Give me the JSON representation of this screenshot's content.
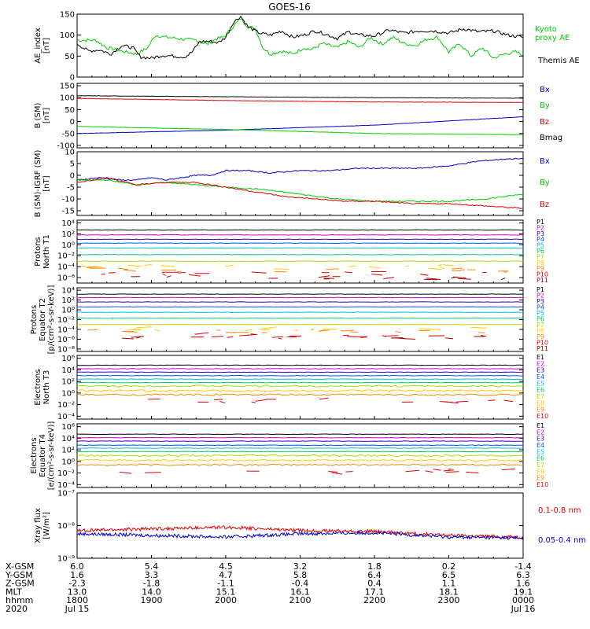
{
  "title": "GOES-16",
  "colors": {
    "black": "#000000",
    "red": "#e00000",
    "green": "#00cc00",
    "blue": "#0000cc",
    "axis": "#000000",
    "bg": "#ffffff"
  },
  "time_axis": {
    "x_range": [
      1800,
      2400
    ],
    "tick_hours": [
      1800,
      1900,
      2000,
      2100,
      2200,
      2300,
      2400
    ]
  },
  "ephemeris": {
    "rows": [
      {
        "label": "X-GSM",
        "values": [
          "6.0",
          "5.4",
          "4.5",
          "3.2",
          "1.8",
          "0.2",
          "-1.4"
        ]
      },
      {
        "label": "Y-GSM",
        "values": [
          "1.6",
          "3.3",
          "4.7",
          "5.8",
          "6.4",
          "6.5",
          "6.3"
        ]
      },
      {
        "label": "Z-GSM",
        "values": [
          "-2.3",
          "-1.8",
          "-1.1",
          "-0.4",
          "0.4",
          "1.1",
          "1.6"
        ]
      },
      {
        "label": "MLT",
        "values": [
          "13.0",
          "14.0",
          "15.1",
          "16.1",
          "17.1",
          "18.1",
          "19.1"
        ]
      },
      {
        "label": "hhmm",
        "values": [
          "1800",
          "1900",
          "2000",
          "2100",
          "2200",
          "2300",
          "0000"
        ]
      },
      {
        "label": "2020",
        "values": [
          "Jul 15",
          "",
          "",
          "",
          "",
          "",
          "Jul 16"
        ]
      }
    ]
  },
  "chart_data": [
    {
      "type": "line",
      "ylabel": [
        "AE_index",
        "[nT]"
      ],
      "ylim": [
        0,
        150
      ],
      "yticks": [
        0,
        50,
        100,
        150
      ],
      "ytick_labels": [
        "0",
        "50",
        "100",
        "150"
      ],
      "series": [
        {
          "name": "Kyoto proxy AE",
          "color": "#00cc00",
          "x": [
            1800,
            1825,
            1840,
            1860,
            1880,
            1895,
            1905,
            1920,
            1945,
            1960,
            1975,
            1985,
            1997,
            2010,
            2020,
            2030,
            2040,
            2050,
            2060,
            2075,
            2090,
            2105,
            2115,
            2130,
            2150,
            2165,
            2180,
            2195,
            2210,
            2225,
            2240,
            2255,
            2270,
            2285,
            2300,
            2315,
            2330,
            2345,
            2360,
            2375,
            2390,
            2400
          ],
          "y": [
            88,
            88,
            70,
            62,
            55,
            70,
            100,
            95,
            90,
            88,
            78,
            90,
            95,
            120,
            140,
            120,
            115,
            70,
            55,
            62,
            55,
            70,
            65,
            80,
            70,
            85,
            70,
            95,
            78,
            95,
            80,
            75,
            90,
            95,
            60,
            80,
            50,
            70,
            45,
            55,
            60,
            52
          ]
        },
        {
          "name": "Themis AE",
          "color": "#000000",
          "x": [
            1800,
            1815,
            1830,
            1845,
            1860,
            1875,
            1885,
            1900,
            1915,
            1930,
            1945,
            1955,
            1965,
            1980,
            1990,
            2000,
            2010,
            2020,
            2030,
            2045,
            2060,
            2075,
            2090,
            2105,
            2120,
            2135,
            2150,
            2165,
            2180,
            2200,
            2220,
            2240,
            2260,
            2280,
            2300,
            2320,
            2340,
            2360,
            2380,
            2400
          ],
          "y": [
            80,
            62,
            65,
            55,
            75,
            70,
            48,
            45,
            52,
            50,
            48,
            60,
            85,
            85,
            82,
            95,
            130,
            145,
            120,
            105,
            100,
            110,
            95,
            100,
            110,
            102,
            92,
            108,
            100,
            98,
            112,
            105,
            110,
            110,
            105,
            115,
            108,
            110,
            100,
            95
          ]
        }
      ]
    },
    {
      "type": "line",
      "ylabel": [
        "B (SM)",
        "[nT]"
      ],
      "ylim": [
        -110,
        160
      ],
      "yticks": [
        -100,
        -50,
        0,
        50,
        100,
        150
      ],
      "ytick_labels": [
        "-100",
        "-50",
        "0",
        "50",
        "100",
        "150"
      ],
      "series": [
        {
          "name": "Bx",
          "color": "#0000cc",
          "x": [
            1800,
            2000,
            2200,
            2400
          ],
          "y": [
            -50,
            -36,
            -15,
            20
          ]
        },
        {
          "name": "By",
          "color": "#00cc00",
          "x": [
            1800,
            1900,
            2000,
            2200,
            2400
          ],
          "y": [
            -20,
            -27,
            -33,
            -50,
            -55
          ]
        },
        {
          "name": "Bz",
          "color": "#e00000",
          "x": [
            1800,
            2000,
            2200,
            2400
          ],
          "y": [
            97,
            88,
            82,
            80
          ]
        },
        {
          "name": "Bmag",
          "color": "#000000",
          "x": [
            1800,
            2000,
            2200,
            2400
          ],
          "y": [
            108,
            104,
            100,
            98
          ]
        }
      ]
    },
    {
      "type": "line",
      "ylabel": [
        "B (SM)-IGRF (SM)",
        "[nT]"
      ],
      "ylim": [
        -17,
        10
      ],
      "yticks": [
        -15,
        -10,
        -5,
        0,
        5,
        10
      ],
      "ytick_labels": [
        "-15",
        "-10",
        "-5",
        "0",
        "5",
        "10"
      ],
      "series": [
        {
          "name": "Bx",
          "color": "#0000cc",
          "x": [
            1800,
            1830,
            1860,
            1880,
            1900,
            1920,
            1940,
            1960,
            1980,
            2000,
            2030,
            2060,
            2100,
            2140,
            2180,
            2220,
            2260,
            2300,
            2340,
            2380,
            2400
          ],
          "y": [
            -2,
            -1,
            -2,
            -2,
            -1,
            -2,
            -1,
            0,
            0,
            2,
            2,
            1,
            2,
            2,
            3,
            3,
            3,
            4,
            6,
            7,
            7
          ]
        },
        {
          "name": "By",
          "color": "#00cc00",
          "x": [
            1800,
            1840,
            1880,
            1920,
            1960,
            2000,
            2050,
            2100,
            2150,
            2200,
            2250,
            2300,
            2350,
            2400
          ],
          "y": [
            -2,
            -2,
            -4,
            -3,
            -4,
            -5,
            -6,
            -8,
            -10,
            -11,
            -11,
            -11,
            -10,
            -8
          ]
        },
        {
          "name": "Bz",
          "color": "#e00000",
          "x": [
            1800,
            1840,
            1880,
            1920,
            1960,
            2000,
            2040,
            2080,
            2120,
            2160,
            2200,
            2250,
            2300,
            2350,
            2400
          ],
          "y": [
            -3,
            -1,
            -4,
            -3,
            -3,
            -5,
            -7,
            -9,
            -10,
            -11,
            -11,
            -12,
            -12,
            -13,
            -14
          ]
        }
      ]
    },
    {
      "type": "line",
      "ylabel": [
        "Protons",
        "North T1"
      ],
      "log_scale": true,
      "ylim": [
        -7,
        4.5
      ],
      "yticks": [
        4,
        2,
        0,
        -2,
        -4,
        -6
      ],
      "ytick_labels": [
        "10⁴",
        "10²",
        "10⁰",
        "10⁻²",
        "10⁻⁴",
        "10⁻⁶"
      ],
      "channels": [
        {
          "name": "P1",
          "color": "#000000",
          "log_level": 2.7
        },
        {
          "name": "P2",
          "color": "#cc00cc",
          "log_level": 1.8
        },
        {
          "name": "P3",
          "color": "#3a00aa",
          "log_level": 1.0
        },
        {
          "name": "P4",
          "color": "#0050ff",
          "log_level": 0.3
        },
        {
          "name": "P5",
          "color": "#00bbdd",
          "log_level": -0.6
        },
        {
          "name": "P6",
          "color": "#00cc66",
          "log_level": -1.8
        },
        {
          "name": "P7",
          "color": "#aadd00",
          "log_level": -3.0
        },
        {
          "name": "P8",
          "color": "#ffcc00",
          "log_level": -4.0,
          "segmented": true
        },
        {
          "name": "P9",
          "color": "#ff8800",
          "log_level": -4.6,
          "segmented": true
        },
        {
          "name": "P10",
          "color": "#e00000",
          "log_level": -5.2,
          "segmented": true
        },
        {
          "name": "P11",
          "color": "#aa0000",
          "log_level": -6.0,
          "segmented": true
        }
      ]
    },
    {
      "type": "line",
      "ylabel": [
        "Protons",
        "Equator T2",
        "[p/(cm²-s-sr-keV)]"
      ],
      "log_scale": true,
      "ylim": [
        -8.5,
        4.5
      ],
      "yticks": [
        4,
        2,
        0,
        -2,
        -4,
        -6,
        -8
      ],
      "ytick_labels": [
        "10⁴",
        "10²",
        "10⁰",
        "10⁻²",
        "10⁻⁴",
        "10⁻⁶",
        "10⁻⁸"
      ],
      "channels": [
        {
          "name": "P1",
          "color": "#000000",
          "log_level": 3.2
        },
        {
          "name": "P2",
          "color": "#cc00cc",
          "log_level": 2.5
        },
        {
          "name": "P3",
          "color": "#3a00aa",
          "log_level": 1.6
        },
        {
          "name": "P4",
          "color": "#0050ff",
          "log_level": 0.6
        },
        {
          "name": "P5",
          "color": "#00bbdd",
          "log_level": -0.5
        },
        {
          "name": "P6",
          "color": "#00cc66",
          "log_level": -1.7
        },
        {
          "name": "P7",
          "color": "#aadd00",
          "log_level": -3.0
        },
        {
          "name": "P8",
          "color": "#ffcc00",
          "log_level": -3.9,
          "segmented": true
        },
        {
          "name": "P9",
          "color": "#ff8800",
          "log_level": -4.4,
          "segmented": true
        },
        {
          "name": "P10",
          "color": "#e00000",
          "log_level": -5.3,
          "segmented": true
        },
        {
          "name": "P11",
          "color": "#aa0000",
          "log_level": -5.5,
          "segmented": true
        }
      ]
    },
    {
      "type": "line",
      "ylabel": [
        "Electrons",
        "North T3"
      ],
      "log_scale": true,
      "ylim": [
        -4.5,
        6.5
      ],
      "yticks": [
        6,
        4,
        2,
        0,
        -2,
        -4
      ],
      "ytick_labels": [
        "10⁶",
        "10⁴",
        "10²",
        "10⁰",
        "10⁻²",
        "10⁻⁴"
      ],
      "channels": [
        {
          "name": "E1",
          "color": "#000000",
          "log_level": 4.8
        },
        {
          "name": "E2",
          "color": "#cc00cc",
          "log_level": 4.2
        },
        {
          "name": "E3",
          "color": "#3a00aa",
          "log_level": 3.6
        },
        {
          "name": "E4",
          "color": "#0050ff",
          "log_level": 3.0
        },
        {
          "name": "E5",
          "color": "#00bbdd",
          "log_level": 2.4
        },
        {
          "name": "E6",
          "color": "#00cc66",
          "log_level": 1.8
        },
        {
          "name": "E7",
          "color": "#aadd00",
          "log_level": 1.2
        },
        {
          "name": "E8",
          "color": "#ffcc00",
          "log_level": 0.4
        },
        {
          "name": "E9",
          "color": "#ff8800",
          "log_level": -0.3
        },
        {
          "name": "E10",
          "color": "#e00000",
          "log_level": -1.2,
          "segmented": true
        }
      ]
    },
    {
      "type": "line",
      "ylabel": [
        "Electrons",
        "Equator T4",
        "[e/(cm²-s-sr-keV)]"
      ],
      "log_scale": true,
      "ylim": [
        -4.5,
        6.5
      ],
      "yticks": [
        6,
        4,
        2,
        0,
        -2,
        -4
      ],
      "ytick_labels": [
        "10⁶",
        "10⁴",
        "10²",
        "10⁰",
        "10⁻²",
        "10⁻⁴"
      ],
      "channels": [
        {
          "name": "E1",
          "color": "#000000",
          "log_level": 4.7
        },
        {
          "name": "E2",
          "color": "#cc00cc",
          "log_level": 4.1
        },
        {
          "name": "E3",
          "color": "#3a00aa",
          "log_level": 3.5
        },
        {
          "name": "E4",
          "color": "#0050ff",
          "log_level": 2.8
        },
        {
          "name": "E5",
          "color": "#00bbdd",
          "log_level": 2.3
        },
        {
          "name": "E6",
          "color": "#00cc66",
          "log_level": 1.7
        },
        {
          "name": "E7",
          "color": "#aadd00",
          "log_level": 1.0
        },
        {
          "name": "E8",
          "color": "#ffcc00",
          "log_level": 0.2
        },
        {
          "name": "E9",
          "color": "#ff8800",
          "log_level": -0.6
        },
        {
          "name": "E10",
          "color": "#e00000",
          "log_level": -1.7,
          "segmented": true
        }
      ]
    },
    {
      "type": "line",
      "ylabel": [
        "Xray flux",
        "[W/m²]"
      ],
      "log_scale": true,
      "ylim": [
        -9,
        -7
      ],
      "yticks": [
        -7,
        -8,
        -9
      ],
      "ytick_labels": [
        "10⁻⁷",
        "10⁻⁸",
        "10⁻⁹"
      ],
      "series": [
        {
          "name": "0.1-0.8 nm",
          "color": "#e00000",
          "x": [
            1800,
            2000,
            2100,
            2200,
            2300,
            2400
          ],
          "y": [
            -8.15,
            -8.05,
            -8.15,
            -8.18,
            -8.3,
            -8.35
          ]
        },
        {
          "name": "0.05-0.4 nm",
          "color": "#0000cc",
          "x": [
            1800,
            2000,
            2100,
            2200,
            2300,
            2400
          ],
          "y": [
            -8.25,
            -8.35,
            -8.25,
            -8.22,
            -8.35,
            -8.38
          ]
        }
      ]
    }
  ]
}
